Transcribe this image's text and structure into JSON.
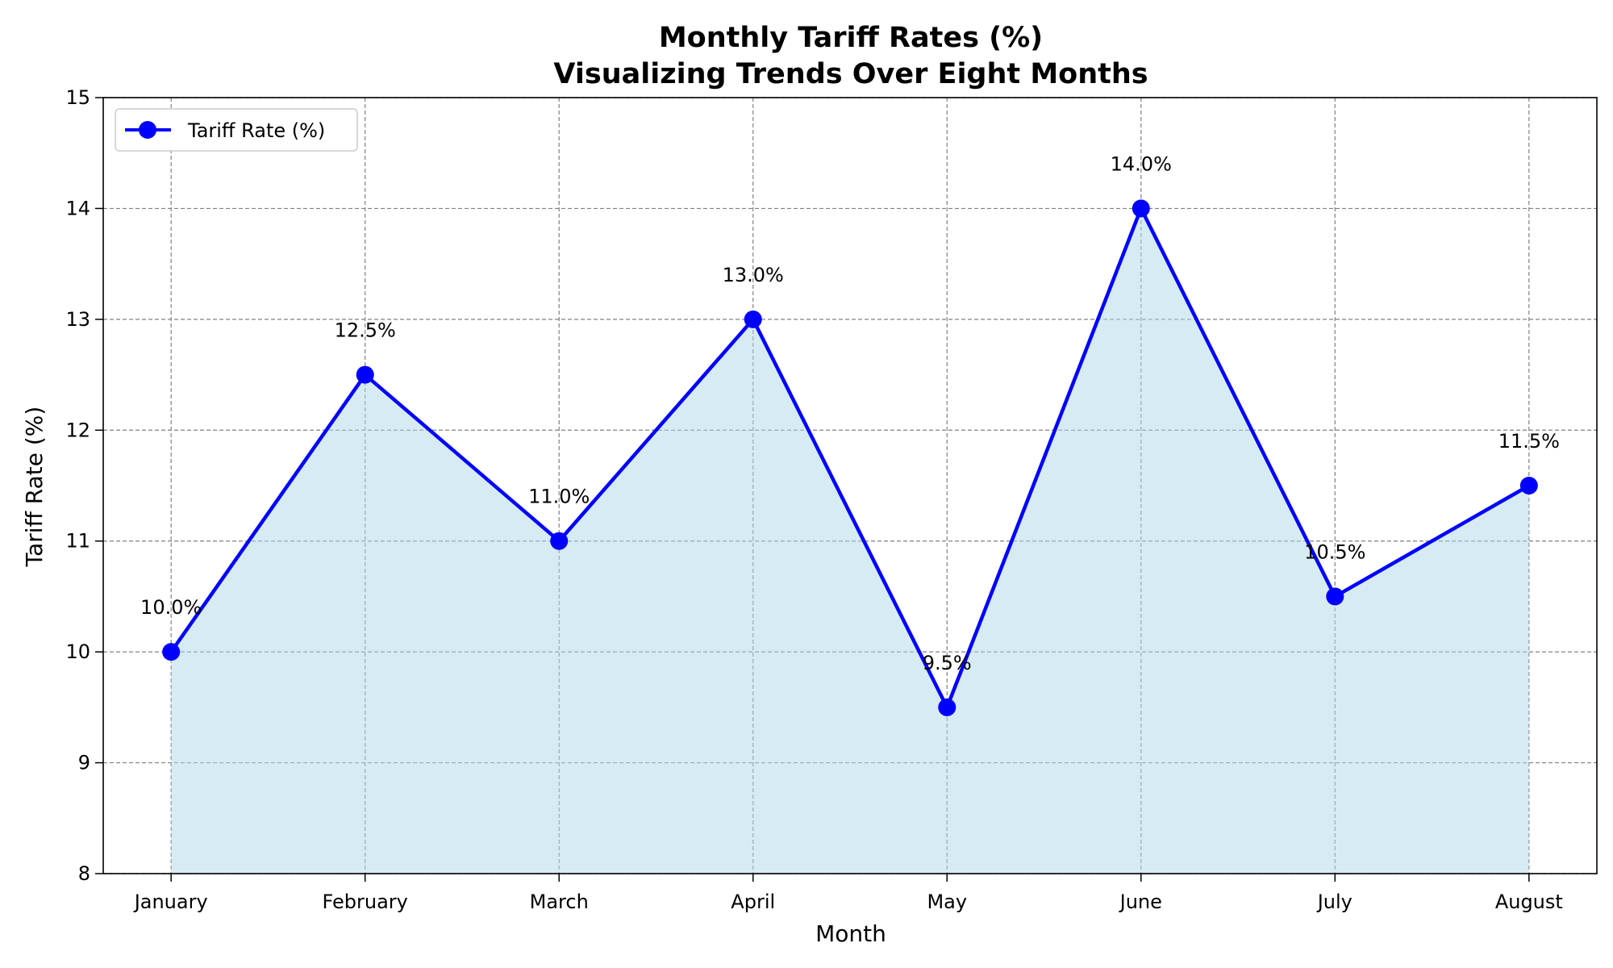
{
  "chart_data": {
    "type": "line",
    "title": "Monthly Tariff Rates (%)",
    "subtitle": "Visualizing Trends Over Eight Months",
    "xlabel": "Month",
    "ylabel": "Tariff Rate (%)",
    "categories": [
      "January",
      "February",
      "March",
      "April",
      "May",
      "June",
      "July",
      "August"
    ],
    "series": [
      {
        "name": "Tariff Rate (%)",
        "values": [
          10.0,
          12.5,
          11.0,
          13.0,
          9.5,
          14.0,
          10.5,
          11.5
        ],
        "data_labels": [
          "10.0%",
          "12.5%",
          "11.0%",
          "13.0%",
          "9.5%",
          "14.0%",
          "10.5%",
          "11.5%"
        ],
        "color": "#0000ff",
        "fill_color": "#add8e6",
        "marker": "circle"
      }
    ],
    "ylim": [
      8,
      15
    ],
    "yticks": [
      "8",
      "9",
      "10",
      "11",
      "12",
      "13",
      "14",
      "15"
    ],
    "grid": true,
    "grid_color": "#808080",
    "legend_position": "top-left"
  }
}
